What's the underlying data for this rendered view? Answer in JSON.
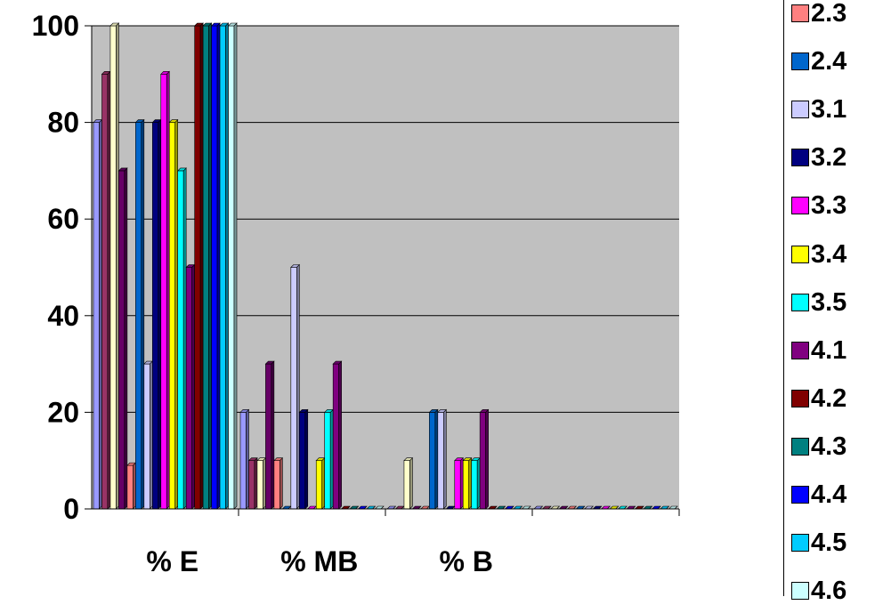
{
  "chart_data": {
    "type": "bar",
    "categories": [
      "% E",
      "% MB",
      "% B",
      ""
    ],
    "ylim": [
      0,
      100
    ],
    "yticks": [
      "0",
      "20",
      "40",
      "60",
      "80",
      "100"
    ],
    "grid": true,
    "legend_position": "right",
    "plot_background": "#C0C0C0",
    "series": [
      {
        "color": "#9999FF",
        "values": [
          80,
          20,
          0,
          0
        ]
      },
      {
        "color": "#993366",
        "values": [
          90,
          10,
          0,
          0
        ]
      },
      {
        "color": "#FFFFCC",
        "values": [
          100,
          10,
          10,
          0
        ]
      },
      {
        "color": "#660066",
        "values": [
          70,
          30,
          0,
          0
        ]
      },
      {
        "name": "2.3",
        "color": "#FF8080",
        "values": [
          9,
          10,
          0,
          0
        ]
      },
      {
        "name": "2.4",
        "color": "#0066CC",
        "values": [
          80,
          0,
          20,
          0
        ]
      },
      {
        "name": "3.1",
        "color": "#CCCCFF",
        "values": [
          30,
          50,
          20,
          0
        ]
      },
      {
        "name": "3.2",
        "color": "#000080",
        "values": [
          80,
          20,
          0,
          0
        ]
      },
      {
        "name": "3.3",
        "color": "#FF00FF",
        "values": [
          90,
          0,
          10,
          0
        ]
      },
      {
        "name": "3.4",
        "color": "#FFFF00",
        "values": [
          80,
          10,
          10,
          0
        ]
      },
      {
        "name": "3.5",
        "color": "#00FFFF",
        "values": [
          70,
          20,
          10,
          0
        ]
      },
      {
        "name": "4.1",
        "color": "#800080",
        "values": [
          50,
          30,
          20,
          0
        ]
      },
      {
        "name": "4.2",
        "color": "#800000",
        "values": [
          100,
          0,
          0,
          0
        ]
      },
      {
        "name": "4.3",
        "color": "#008080",
        "values": [
          100,
          0,
          0,
          0
        ]
      },
      {
        "name": "4.4",
        "color": "#0000FF",
        "values": [
          100,
          0,
          0,
          0
        ]
      },
      {
        "name": "4.5",
        "color": "#00CCFF",
        "values": [
          100,
          0,
          0,
          0
        ]
      },
      {
        "name": "4.6",
        "color": "#CCFFFF",
        "values": [
          100,
          0,
          0,
          0
        ]
      }
    ]
  }
}
